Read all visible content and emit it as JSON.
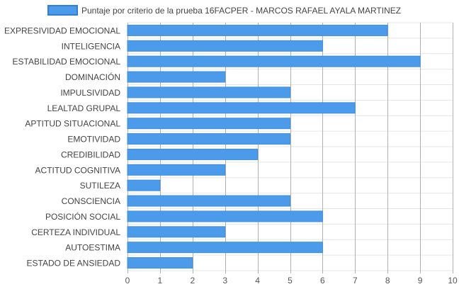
{
  "chart_data": {
    "type": "bar",
    "orientation": "horizontal",
    "categories": [
      "EXPRESIVIDAD EMOCIONAL",
      "INTELIGENCIA",
      "ESTABILIDAD EMOCIONAL",
      "DOMINACIÓN",
      "IMPULSIVIDAD",
      "LEALTAD GRUPAL",
      "APTITUD SITUACIONAL",
      "EMOTIVIDAD",
      "CREDIBILIDAD",
      "ACTITUD COGNITIVA",
      "SUTILEZA",
      "CONSCIENCIA",
      "POSICIÓN SOCIAL",
      "CERTEZA INDIVIDUAL",
      "AUTOESTIMA",
      "ESTADO DE ANSIEDAD"
    ],
    "series": [
      {
        "name": "Puntaje por criterio de la prueba 16FACPER - MARCOS RAFAEL AYALA MARTINEZ",
        "values": [
          8,
          6,
          9,
          3,
          5,
          7,
          5,
          5,
          4,
          3,
          1,
          5,
          6,
          3,
          6,
          2
        ]
      }
    ],
    "xlim": [
      0,
      10
    ],
    "xticks": [
      "0",
      "1",
      "2",
      "3",
      "4",
      "5",
      "6",
      "7",
      "8",
      "9",
      "10"
    ],
    "title": "",
    "xlabel": "",
    "ylabel": "",
    "grid": true,
    "legend_position": "top",
    "colors": {
      "bar_fill": "#4b9bea",
      "bar_stroke": "#3d8fe0",
      "legend_fill": "#4b9bea",
      "legend_stroke": "#2f7fd6",
      "grid_major": "#b0b0b0",
      "grid_minor": "#e6e6e6",
      "label_text": "#444444",
      "tick_text": "#555555"
    }
  }
}
